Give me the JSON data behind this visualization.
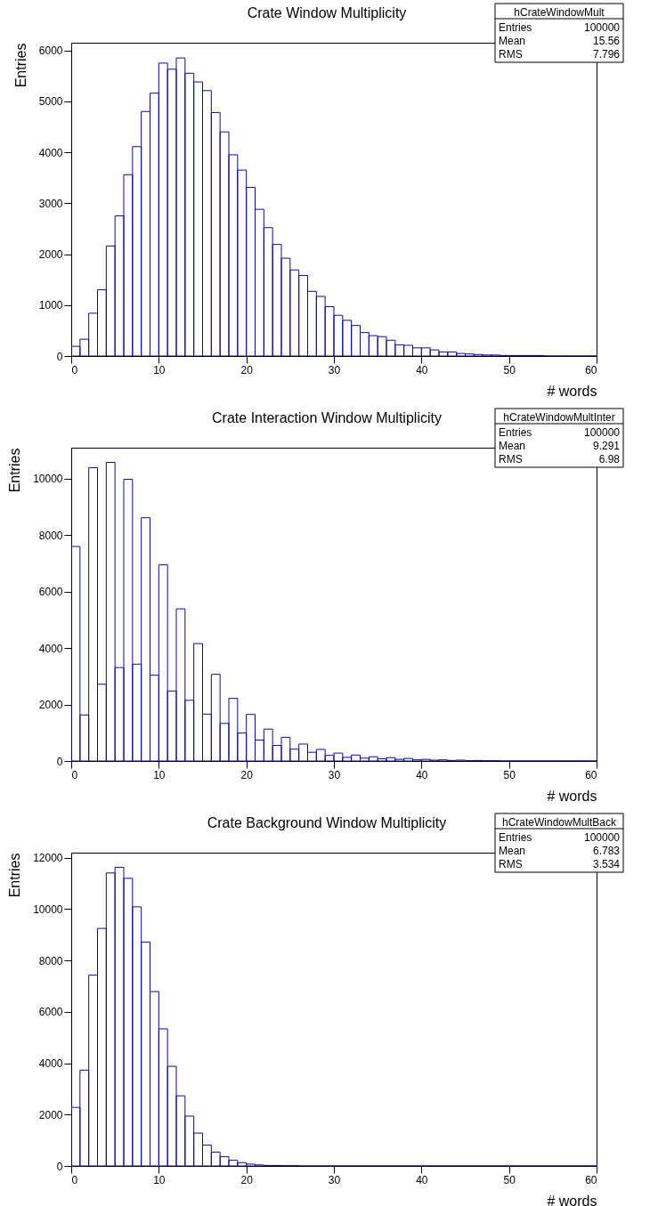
{
  "chart_data": [
    {
      "type": "histogram",
      "title": "Crate Window Multiplicity",
      "xlabel": "# words",
      "ylabel": "Entries",
      "color": "#0a0aa8",
      "bins": [
        0,
        1,
        2,
        3,
        4,
        5,
        6,
        7,
        8,
        9,
        10,
        11,
        12,
        13,
        14,
        15,
        16,
        17,
        18,
        19,
        20,
        21,
        22,
        23,
        24,
        25,
        26,
        27,
        28,
        29,
        30,
        31,
        32,
        33,
        34,
        35,
        36,
        37,
        38,
        39,
        40,
        41,
        42,
        43,
        44,
        45,
        46,
        47,
        48,
        49,
        50,
        51,
        52,
        53,
        54,
        55,
        56,
        57,
        58,
        59,
        60
      ],
      "values": [
        190,
        330,
        840,
        1300,
        2160,
        2750,
        3560,
        4110,
        4800,
        5160,
        5750,
        5630,
        5850,
        5550,
        5380,
        5210,
        4780,
        4400,
        3950,
        3650,
        3310,
        2880,
        2520,
        2190,
        1920,
        1690,
        1580,
        1270,
        1170,
        970,
        800,
        700,
        600,
        460,
        400,
        380,
        310,
        220,
        210,
        160,
        160,
        120,
        80,
        80,
        50,
        40,
        30,
        20,
        20,
        10,
        10,
        10,
        10,
        10,
        0,
        0,
        0,
        0,
        0,
        0
      ],
      "xlim": [
        0,
        60
      ],
      "xticks": [
        0,
        10,
        20,
        30,
        40,
        50,
        60
      ],
      "ylim": [
        0,
        6150
      ],
      "yticks": [
        0,
        1000,
        2000,
        3000,
        4000,
        5000,
        6000
      ],
      "annotations": [
        "hCrateWindowMult",
        "Entries",
        "100000",
        "Mean",
        "15.56",
        "RMS",
        "7.796"
      ]
    },
    {
      "type": "histogram",
      "title": "Crate Interaction Window Multiplicity",
      "xlabel": "# words",
      "ylabel": "Entries",
      "color": "#0a0aa8",
      "bins": [
        0,
        1,
        2,
        3,
        4,
        5,
        6,
        7,
        8,
        9,
        10,
        11,
        12,
        13,
        14,
        15,
        16,
        17,
        18,
        19,
        20,
        21,
        22,
        23,
        24,
        25,
        26,
        27,
        28,
        29,
        30,
        31,
        32,
        33,
        34,
        35,
        36,
        37,
        38,
        39,
        40,
        41,
        42,
        43,
        44,
        45,
        46,
        47,
        48,
        49,
        50,
        51,
        52,
        53,
        54,
        55,
        56,
        57,
        58,
        59,
        60
      ],
      "values": [
        7600,
        1630,
        10390,
        2720,
        10580,
        3310,
        9980,
        3430,
        8620,
        3040,
        6950,
        2480,
        5390,
        2150,
        4160,
        1660,
        3070,
        1330,
        2220,
        990,
        1650,
        740,
        1130,
        550,
        840,
        420,
        600,
        310,
        410,
        200,
        280,
        130,
        210,
        100,
        150,
        80,
        120,
        60,
        90,
        40,
        60,
        30,
        40,
        20,
        30,
        10,
        20,
        10,
        10,
        0,
        0,
        0,
        0,
        0,
        0,
        0,
        0,
        0,
        0,
        0
      ],
      "xlim": [
        0,
        60
      ],
      "xticks": [
        0,
        10,
        20,
        30,
        40,
        50,
        60
      ],
      "ylim": [
        0,
        11100
      ],
      "yticks": [
        0,
        2000,
        4000,
        6000,
        8000,
        10000
      ],
      "annotations": [
        "hCrateWindowMultInter",
        "Entries",
        "100000",
        "Mean",
        "9.291",
        "RMS",
        "6.98"
      ]
    },
    {
      "type": "histogram",
      "title": "Crate Background Window Multiplicity",
      "xlabel": "# words",
      "ylabel": "Entries",
      "color": "#0a0aa8",
      "bins": [
        0,
        1,
        2,
        3,
        4,
        5,
        6,
        7,
        8,
        9,
        10,
        11,
        12,
        13,
        14,
        15,
        16,
        17,
        18,
        19,
        20,
        21,
        22,
        23,
        24,
        25,
        26,
        27,
        28,
        29,
        30,
        31,
        32,
        33,
        34,
        35,
        36,
        37,
        38,
        39,
        40,
        41,
        42,
        43,
        44,
        45,
        46,
        47,
        48,
        49,
        50,
        51,
        52,
        53,
        54,
        55,
        56,
        57,
        58,
        59,
        60
      ],
      "values": [
        2280,
        3730,
        7430,
        9250,
        11410,
        11630,
        11200,
        10090,
        8720,
        6790,
        5340,
        3880,
        2730,
        1940,
        1280,
        810,
        540,
        360,
        220,
        130,
        70,
        40,
        20,
        20,
        10,
        10,
        0,
        0,
        0,
        0,
        0,
        0,
        0,
        0,
        0,
        0,
        0,
        0,
        0,
        0,
        0,
        0,
        0,
        0,
        0,
        0,
        0,
        0,
        0,
        0,
        0,
        0,
        0,
        0,
        0,
        0,
        0,
        0,
        0,
        0
      ],
      "xlim": [
        0,
        60
      ],
      "xticks": [
        0,
        10,
        20,
        30,
        40,
        50,
        60
      ],
      "ylim": [
        0,
        12200
      ],
      "yticks": [
        0,
        2000,
        4000,
        6000,
        8000,
        10000,
        12000
      ],
      "annotations": [
        "hCrateWindowMultBack",
        "Entries",
        "100000",
        "Mean",
        "6.783",
        "RMS",
        "3.534"
      ]
    }
  ]
}
